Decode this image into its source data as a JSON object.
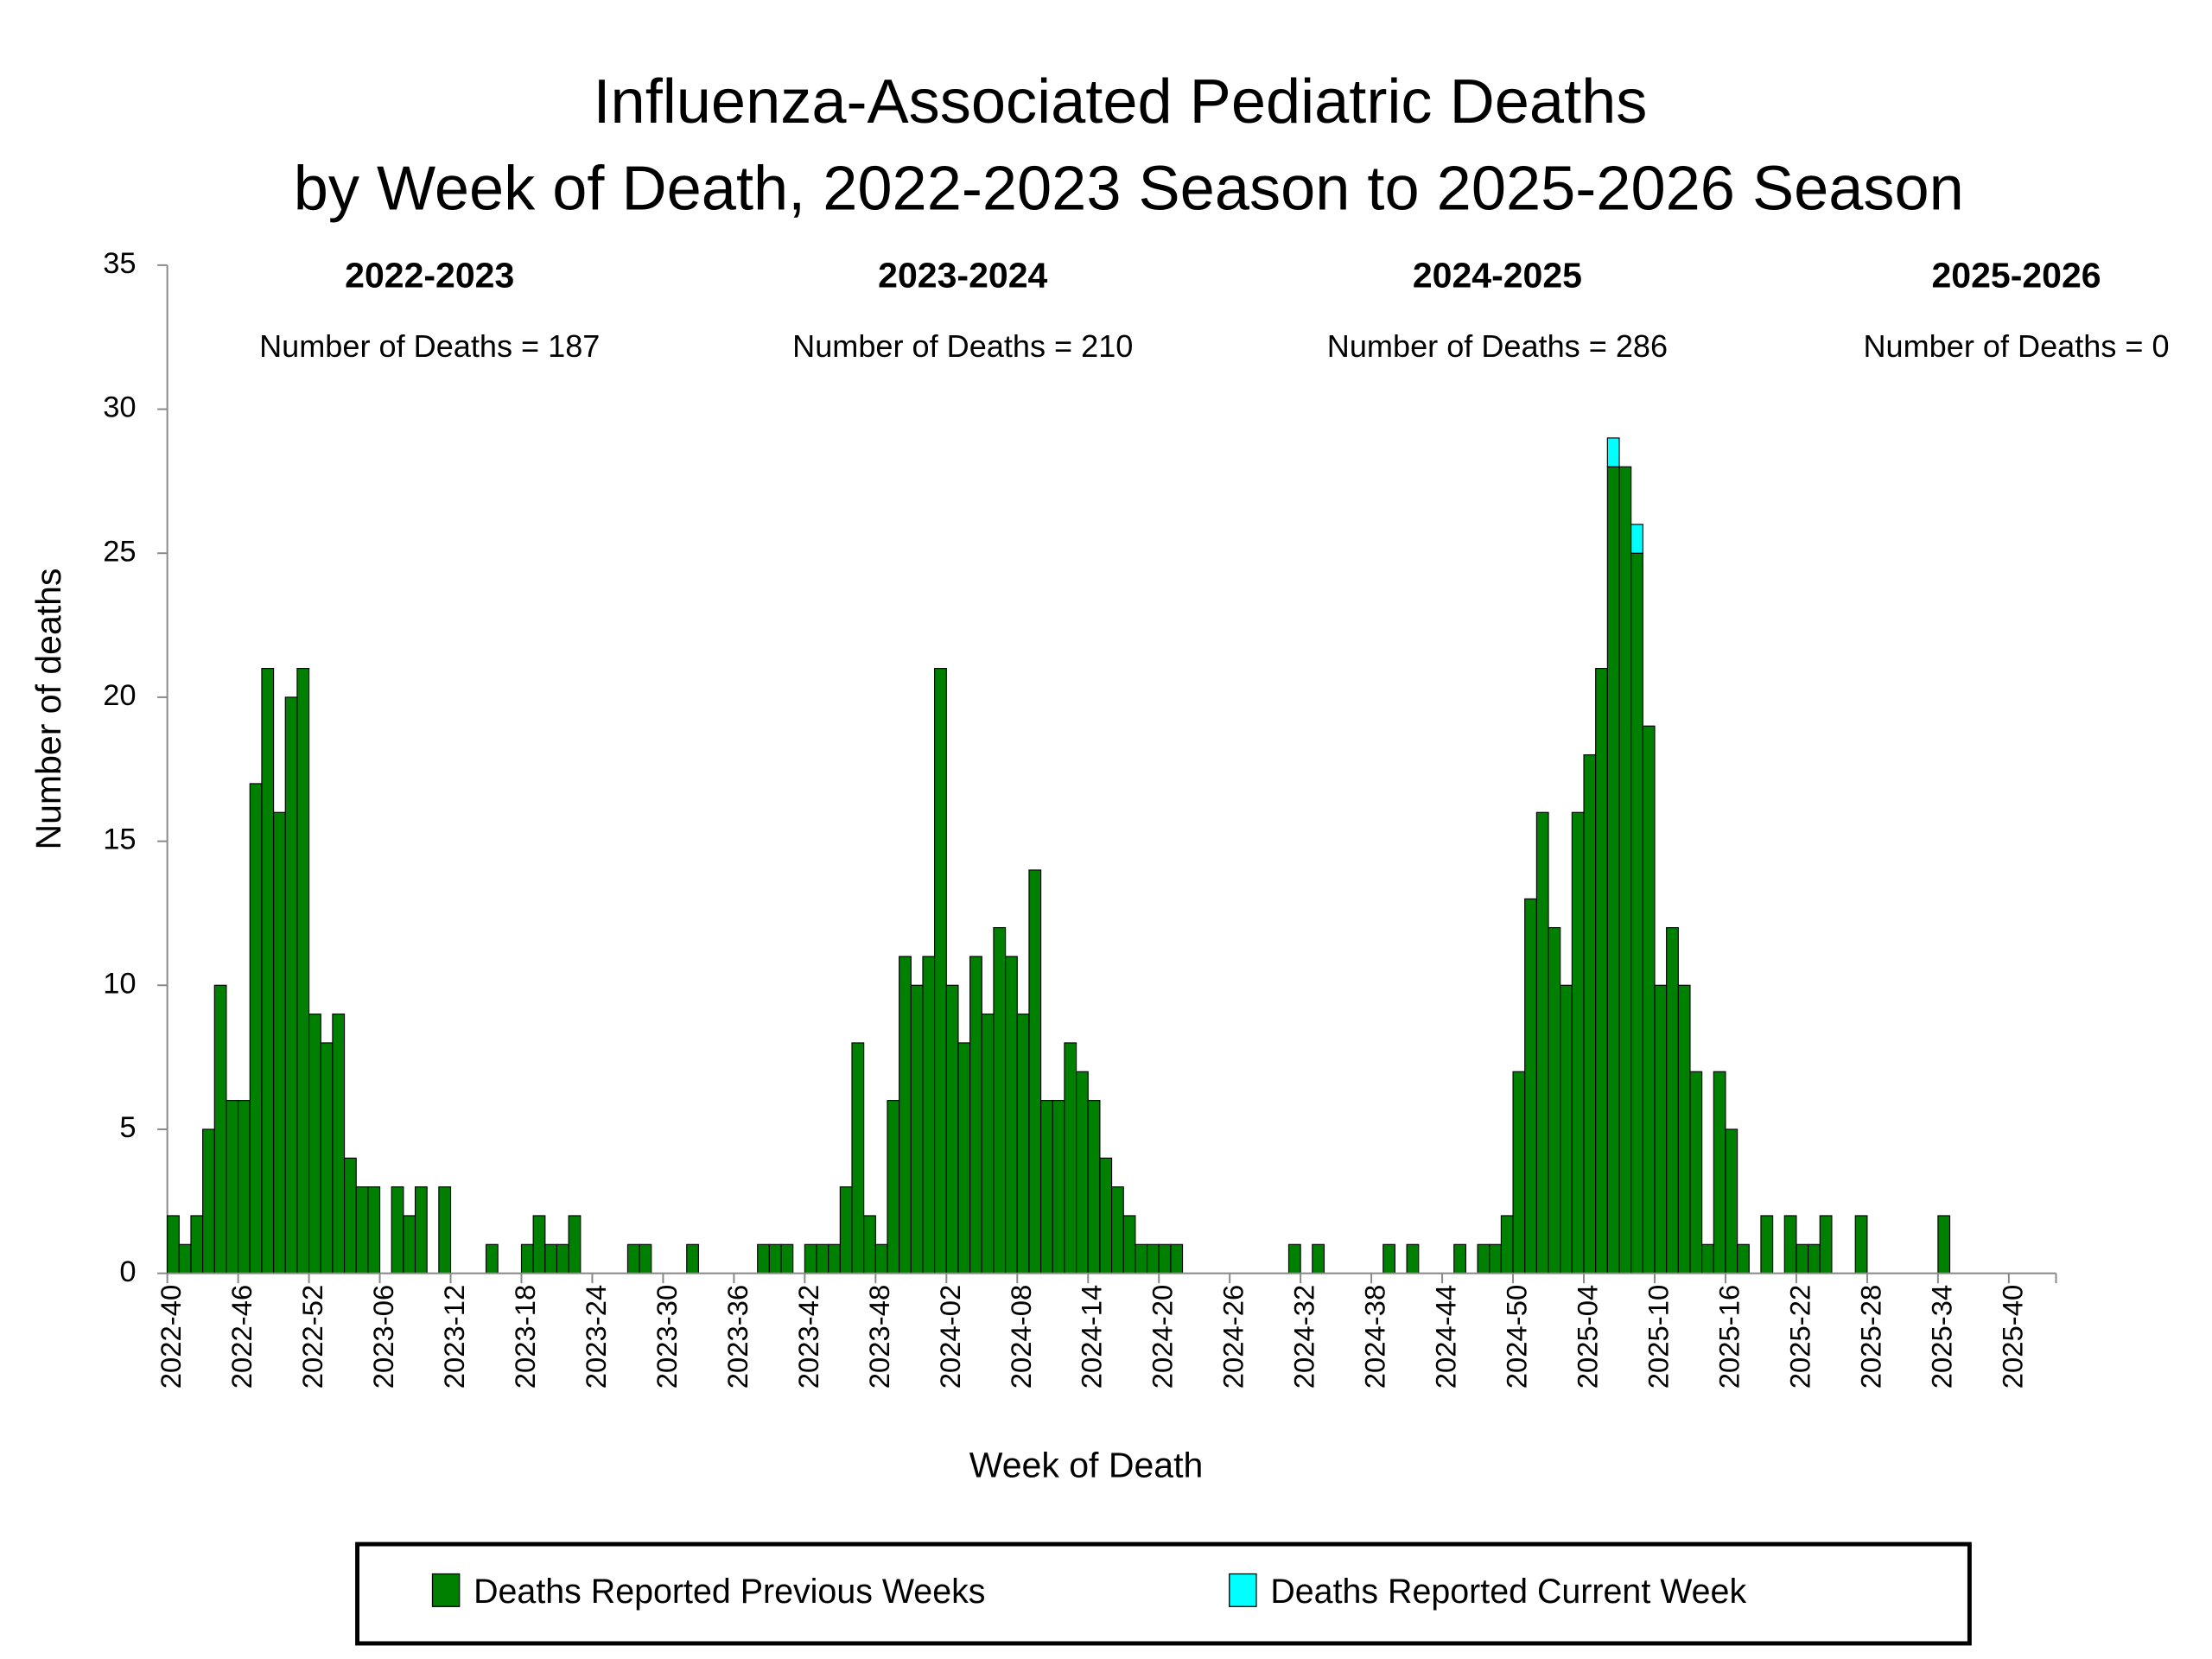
{
  "chart_data": {
    "type": "bar",
    "stacked": true,
    "title": [
      "Influenza-Associated Pediatric Deaths",
      "by Week of Death, 2022-2023 Season to 2025-2026 Season"
    ],
    "x_label": "Week of Death",
    "y_label": "Number of deaths",
    "ylim": [
      0,
      35
    ],
    "yticks": [
      0,
      5,
      10,
      15,
      20,
      25,
      30,
      35
    ],
    "legend_position": "bottom",
    "annotations": [
      {
        "season": "2022-2023",
        "text": "Number of Deaths = 187"
      },
      {
        "season": "2023-2024",
        "text": "Number of Deaths = 210"
      },
      {
        "season": "2024-2025",
        "text": "Number of Deaths = 286"
      },
      {
        "season": "2025-2026",
        "text": "Number of Deaths = 0"
      }
    ],
    "categories": [
      "2022-40",
      null,
      null,
      null,
      null,
      null,
      "2022-46",
      null,
      null,
      null,
      null,
      null,
      "2022-52",
      null,
      null,
      null,
      null,
      null,
      "2023-06",
      null,
      null,
      null,
      null,
      null,
      "2023-12",
      null,
      null,
      null,
      null,
      null,
      "2023-18",
      null,
      null,
      null,
      null,
      null,
      "2023-24",
      null,
      null,
      null,
      null,
      null,
      "2023-30",
      null,
      null,
      null,
      null,
      null,
      "2023-36",
      null,
      null,
      null,
      null,
      null,
      "2023-42",
      null,
      null,
      null,
      null,
      null,
      "2023-48",
      null,
      null,
      null,
      null,
      null,
      "2024-02",
      null,
      null,
      null,
      null,
      null,
      "2024-08",
      null,
      null,
      null,
      null,
      null,
      "2024-14",
      null,
      null,
      null,
      null,
      null,
      "2024-20",
      null,
      null,
      null,
      null,
      null,
      "2024-26",
      null,
      null,
      null,
      null,
      null,
      "2024-32",
      null,
      null,
      null,
      null,
      null,
      "2024-38",
      null,
      null,
      null,
      null,
      null,
      "2024-44",
      null,
      null,
      null,
      null,
      null,
      "2024-50",
      null,
      null,
      null,
      null,
      null,
      "2025-04",
      null,
      null,
      null,
      null,
      null,
      "2025-10",
      null,
      null,
      null,
      null,
      null,
      "2025-16",
      null,
      null,
      null,
      null,
      null,
      "2025-22",
      null,
      null,
      null,
      null,
      null,
      "2025-28",
      null,
      null,
      null,
      null,
      null,
      "2025-34",
      null,
      null,
      null,
      null,
      null,
      "2025-40",
      null,
      null,
      null
    ],
    "series": [
      {
        "name": "Deaths Reported Previous Weeks",
        "color": "#008000",
        "values": [
          2,
          1,
          2,
          5,
          10,
          6,
          6,
          17,
          21,
          16,
          20,
          21,
          9,
          8,
          9,
          4,
          3,
          3,
          0,
          3,
          2,
          3,
          0,
          3,
          0,
          0,
          0,
          1,
          0,
          0,
          1,
          2,
          1,
          1,
          2,
          0,
          0,
          0,
          0,
          1,
          1,
          0,
          0,
          0,
          1,
          0,
          0,
          0,
          0,
          0,
          1,
          1,
          1,
          0,
          1,
          1,
          1,
          3,
          8,
          2,
          1,
          6,
          11,
          10,
          11,
          21,
          10,
          8,
          11,
          9,
          12,
          11,
          9,
          14,
          6,
          6,
          8,
          7,
          6,
          4,
          3,
          2,
          1,
          1,
          1,
          1,
          0,
          0,
          0,
          0,
          0,
          0,
          0,
          0,
          0,
          1,
          0,
          1,
          0,
          0,
          0,
          0,
          0,
          1,
          0,
          1,
          0,
          0,
          0,
          1,
          0,
          1,
          1,
          2,
          7,
          13,
          16,
          12,
          10,
          16,
          18,
          21,
          28,
          28,
          25,
          19,
          10,
          12,
          10,
          7,
          1,
          7,
          5,
          1,
          0,
          2,
          0,
          2,
          1,
          1,
          2,
          0,
          0,
          2,
          0,
          0,
          0,
          0,
          0,
          0,
          2,
          0,
          0,
          0,
          0,
          0,
          0,
          0,
          0,
          0
        ]
      },
      {
        "name": "Deaths Reported Current Week",
        "color": "#00ffff",
        "values": [
          0,
          0,
          0,
          0,
          0,
          0,
          0,
          0,
          0,
          0,
          0,
          0,
          0,
          0,
          0,
          0,
          0,
          0,
          0,
          0,
          0,
          0,
          0,
          0,
          0,
          0,
          0,
          0,
          0,
          0,
          0,
          0,
          0,
          0,
          0,
          0,
          0,
          0,
          0,
          0,
          0,
          0,
          0,
          0,
          0,
          0,
          0,
          0,
          0,
          0,
          0,
          0,
          0,
          0,
          0,
          0,
          0,
          0,
          0,
          0,
          0,
          0,
          0,
          0,
          0,
          0,
          0,
          0,
          0,
          0,
          0,
          0,
          0,
          0,
          0,
          0,
          0,
          0,
          0,
          0,
          0,
          0,
          0,
          0,
          0,
          0,
          0,
          0,
          0,
          0,
          0,
          0,
          0,
          0,
          0,
          0,
          0,
          0,
          0,
          0,
          0,
          0,
          0,
          0,
          0,
          0,
          0,
          0,
          0,
          0,
          0,
          0,
          0,
          0,
          0,
          0,
          0,
          0,
          0,
          0,
          0,
          0,
          1,
          0,
          1,
          0,
          0,
          0,
          0,
          0,
          0,
          0,
          0,
          0,
          0,
          0,
          0,
          0,
          0,
          0,
          0,
          0,
          0,
          0,
          0,
          0,
          0,
          0,
          0,
          0,
          0,
          0,
          0,
          0,
          0,
          0,
          0,
          0,
          0,
          0
        ]
      }
    ]
  }
}
